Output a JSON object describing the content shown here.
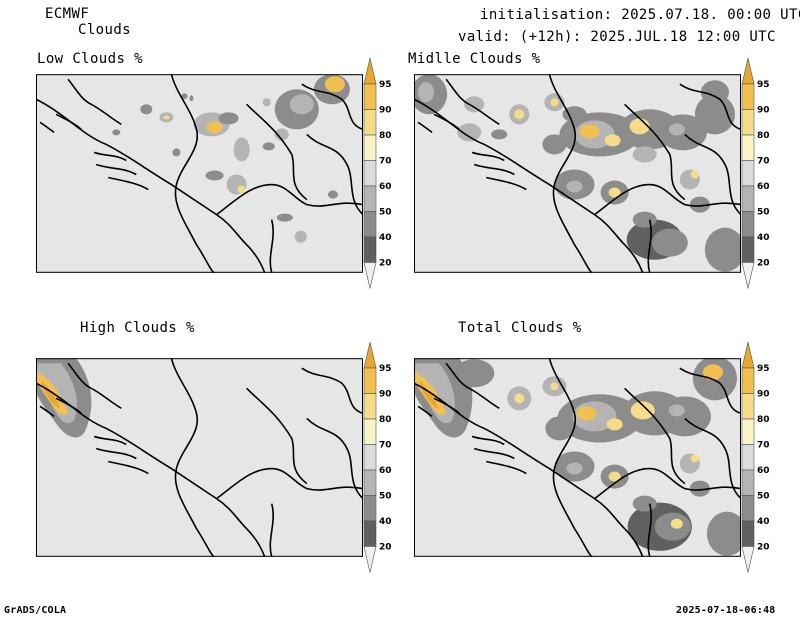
{
  "header": {
    "model": "ECMWF",
    "product": "Clouds",
    "initialisation": "initialisation: 2025.07.18. 00:00 UTC",
    "valid": "valid: (+12h): 2025.JUL.18 12:00 UTC"
  },
  "panels": [
    {
      "id": "low",
      "title": "Low Clouds %"
    },
    {
      "id": "middle",
      "title": "Midlle Clouds %"
    },
    {
      "id": "high",
      "title": "High Clouds %"
    },
    {
      "id": "total",
      "title": "Total Clouds %"
    }
  ],
  "colorbar": {
    "ticks": [
      "95",
      "90",
      "80",
      "70",
      "60",
      "50",
      "40",
      "20"
    ],
    "colors": [
      "#e8a830",
      "#f0c050",
      "#f5dc8a",
      "#f8f4c8",
      "#dcdcdc",
      "#b4b4b4",
      "#8c8c8c",
      "#606060",
      "#f0f0f0"
    ]
  },
  "footer": {
    "left": "GrADS/COLA",
    "right": "2025-07-18-06:48"
  }
}
